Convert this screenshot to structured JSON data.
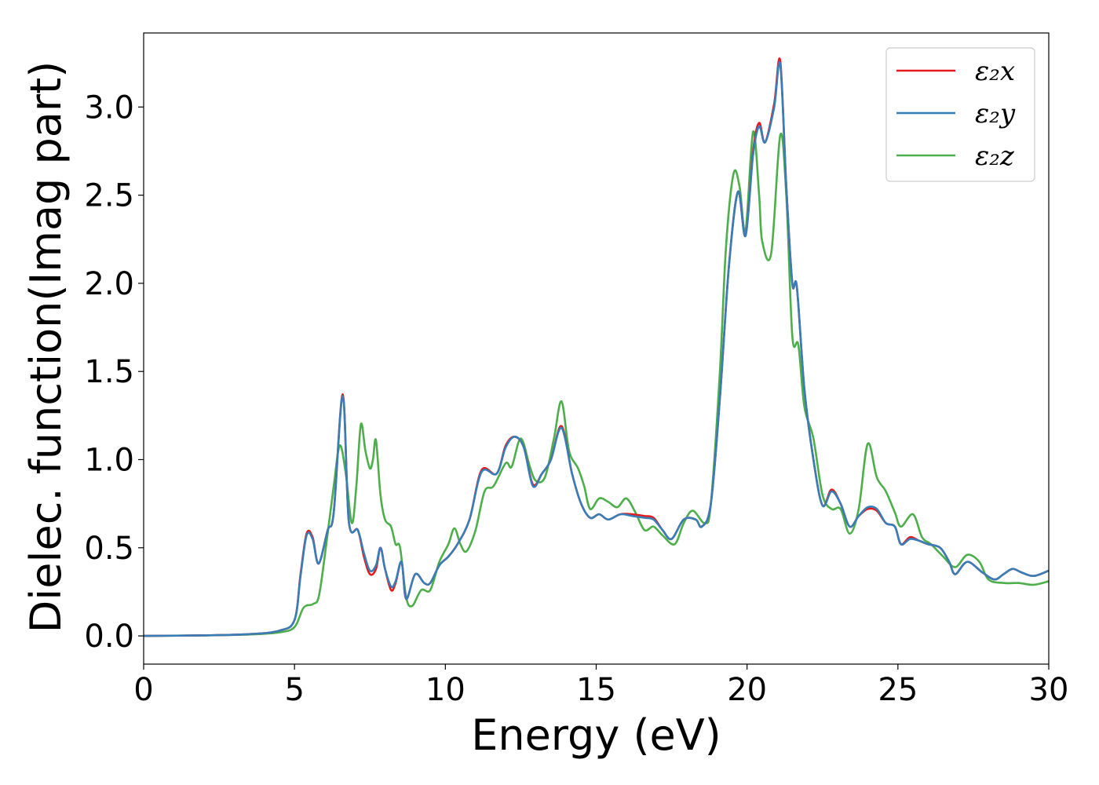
{
  "chart_data": {
    "type": "line",
    "title": "",
    "xlabel": "Energy (eV)",
    "ylabel": "Dielec. function(Imag part)",
    "xlim": [
      0,
      30
    ],
    "ylim": [
      -0.16,
      3.42
    ],
    "xticks": [
      0,
      5,
      10,
      15,
      20,
      25,
      30
    ],
    "yticks": [
      0.0,
      0.5,
      1.0,
      1.5,
      2.0,
      2.5,
      3.0
    ],
    "xtick_labels": [
      "0",
      "5",
      "10",
      "15",
      "20",
      "25",
      "30"
    ],
    "ytick_labels": [
      "0.0",
      "0.5",
      "1.0",
      "1.5",
      "2.0",
      "2.5",
      "3.0"
    ],
    "grid": false,
    "legend": "top-right",
    "series": [
      {
        "name": "ε₂x",
        "color": "#e41a1c",
        "points": [
          [
            0,
            0
          ],
          [
            2,
            0.003
          ],
          [
            3.5,
            0.01
          ],
          [
            4.5,
            0.03
          ],
          [
            5,
            0.09
          ],
          [
            5.2,
            0.35
          ],
          [
            5.4,
            0.58
          ],
          [
            5.6,
            0.56
          ],
          [
            5.8,
            0.41
          ],
          [
            6.1,
            0.6
          ],
          [
            6.3,
            0.7
          ],
          [
            6.6,
            1.37
          ],
          [
            6.8,
            0.65
          ],
          [
            7.1,
            0.6
          ],
          [
            7.3,
            0.45
          ],
          [
            7.5,
            0.35
          ],
          [
            7.7,
            0.38
          ],
          [
            7.85,
            0.5
          ],
          [
            8.0,
            0.38
          ],
          [
            8.2,
            0.26
          ],
          [
            8.35,
            0.3
          ],
          [
            8.55,
            0.42
          ],
          [
            8.7,
            0.21
          ],
          [
            9.0,
            0.35
          ],
          [
            9.3,
            0.3
          ],
          [
            9.5,
            0.3
          ],
          [
            9.8,
            0.4
          ],
          [
            10.1,
            0.45
          ],
          [
            10.4,
            0.52
          ],
          [
            10.8,
            0.66
          ],
          [
            11.2,
            0.94
          ],
          [
            11.7,
            0.92
          ],
          [
            12.0,
            1.08
          ],
          [
            12.3,
            1.13
          ],
          [
            12.6,
            1.07
          ],
          [
            12.9,
            0.86
          ],
          [
            13.2,
            0.92
          ],
          [
            13.5,
            1.0
          ],
          [
            13.85,
            1.19
          ],
          [
            14.2,
            0.92
          ],
          [
            14.5,
            0.75
          ],
          [
            14.8,
            0.67
          ],
          [
            15.1,
            0.69
          ],
          [
            15.4,
            0.66
          ],
          [
            15.8,
            0.69
          ],
          [
            16.2,
            0.69
          ],
          [
            16.6,
            0.68
          ],
          [
            16.9,
            0.67
          ],
          [
            17.2,
            0.6
          ],
          [
            17.5,
            0.55
          ],
          [
            17.9,
            0.66
          ],
          [
            18.3,
            0.66
          ],
          [
            18.5,
            0.62
          ],
          [
            18.8,
            0.75
          ],
          [
            19.1,
            1.35
          ],
          [
            19.4,
            2.1
          ],
          [
            19.7,
            2.52
          ],
          [
            19.95,
            2.27
          ],
          [
            20.2,
            2.75
          ],
          [
            20.4,
            2.91
          ],
          [
            20.6,
            2.8
          ],
          [
            20.9,
            3.02
          ],
          [
            21.1,
            3.26
          ],
          [
            21.3,
            2.55
          ],
          [
            21.5,
            2.0
          ],
          [
            21.65,
            1.98
          ],
          [
            21.9,
            1.4
          ],
          [
            22.2,
            1.0
          ],
          [
            22.5,
            0.74
          ],
          [
            22.8,
            0.83
          ],
          [
            23.1,
            0.75
          ],
          [
            23.4,
            0.62
          ],
          [
            23.7,
            0.68
          ],
          [
            24.0,
            0.72
          ],
          [
            24.3,
            0.71
          ],
          [
            24.6,
            0.64
          ],
          [
            24.9,
            0.62
          ],
          [
            25.1,
            0.52
          ],
          [
            25.4,
            0.56
          ],
          [
            25.7,
            0.54
          ],
          [
            26.0,
            0.52
          ],
          [
            26.4,
            0.5
          ],
          [
            26.7,
            0.42
          ],
          [
            26.9,
            0.35
          ],
          [
            27.3,
            0.42
          ],
          [
            27.8,
            0.36
          ],
          [
            28.2,
            0.32
          ],
          [
            28.5,
            0.35
          ],
          [
            28.8,
            0.38
          ],
          [
            29.1,
            0.36
          ],
          [
            29.5,
            0.34
          ],
          [
            30,
            0.37
          ]
        ]
      },
      {
        "name": "ε₂y",
        "color": "#377eb8",
        "points": [
          [
            0,
            0
          ],
          [
            2,
            0.003
          ],
          [
            3.5,
            0.01
          ],
          [
            4.5,
            0.03
          ],
          [
            5,
            0.09
          ],
          [
            5.2,
            0.34
          ],
          [
            5.4,
            0.57
          ],
          [
            5.6,
            0.55
          ],
          [
            5.8,
            0.41
          ],
          [
            6.1,
            0.6
          ],
          [
            6.3,
            0.7
          ],
          [
            6.6,
            1.36
          ],
          [
            6.8,
            0.65
          ],
          [
            7.1,
            0.6
          ],
          [
            7.3,
            0.47
          ],
          [
            7.5,
            0.37
          ],
          [
            7.7,
            0.4
          ],
          [
            7.85,
            0.5
          ],
          [
            8.0,
            0.38
          ],
          [
            8.2,
            0.28
          ],
          [
            8.35,
            0.31
          ],
          [
            8.55,
            0.42
          ],
          [
            8.7,
            0.21
          ],
          [
            9.0,
            0.35
          ],
          [
            9.3,
            0.3
          ],
          [
            9.5,
            0.3
          ],
          [
            9.8,
            0.4
          ],
          [
            10.1,
            0.45
          ],
          [
            10.4,
            0.52
          ],
          [
            10.8,
            0.66
          ],
          [
            11.2,
            0.93
          ],
          [
            11.7,
            0.92
          ],
          [
            12.0,
            1.07
          ],
          [
            12.3,
            1.13
          ],
          [
            12.6,
            1.07
          ],
          [
            12.9,
            0.85
          ],
          [
            13.2,
            0.92
          ],
          [
            13.5,
            1.0
          ],
          [
            13.85,
            1.18
          ],
          [
            14.2,
            0.92
          ],
          [
            14.5,
            0.75
          ],
          [
            14.8,
            0.67
          ],
          [
            15.1,
            0.69
          ],
          [
            15.4,
            0.66
          ],
          [
            15.8,
            0.69
          ],
          [
            16.2,
            0.68
          ],
          [
            16.6,
            0.67
          ],
          [
            16.9,
            0.66
          ],
          [
            17.2,
            0.6
          ],
          [
            17.5,
            0.55
          ],
          [
            17.9,
            0.66
          ],
          [
            18.3,
            0.66
          ],
          [
            18.5,
            0.62
          ],
          [
            18.8,
            0.75
          ],
          [
            19.1,
            1.35
          ],
          [
            19.4,
            2.1
          ],
          [
            19.7,
            2.52
          ],
          [
            19.95,
            2.27
          ],
          [
            20.2,
            2.73
          ],
          [
            20.4,
            2.89
          ],
          [
            20.6,
            2.8
          ],
          [
            20.9,
            3.0
          ],
          [
            21.1,
            3.24
          ],
          [
            21.3,
            2.55
          ],
          [
            21.5,
            2.0
          ],
          [
            21.65,
            1.98
          ],
          [
            21.9,
            1.4
          ],
          [
            22.2,
            1.0
          ],
          [
            22.5,
            0.74
          ],
          [
            22.8,
            0.82
          ],
          [
            23.1,
            0.75
          ],
          [
            23.4,
            0.62
          ],
          [
            23.7,
            0.68
          ],
          [
            24.0,
            0.73
          ],
          [
            24.3,
            0.72
          ],
          [
            24.6,
            0.64
          ],
          [
            24.9,
            0.62
          ],
          [
            25.1,
            0.52
          ],
          [
            25.4,
            0.55
          ],
          [
            25.7,
            0.54
          ],
          [
            26.0,
            0.52
          ],
          [
            26.4,
            0.5
          ],
          [
            26.7,
            0.42
          ],
          [
            26.9,
            0.35
          ],
          [
            27.3,
            0.42
          ],
          [
            27.8,
            0.36
          ],
          [
            28.2,
            0.32
          ],
          [
            28.5,
            0.35
          ],
          [
            28.8,
            0.38
          ],
          [
            29.1,
            0.36
          ],
          [
            29.5,
            0.34
          ],
          [
            30,
            0.37
          ]
        ]
      },
      {
        "name": "ε₂z",
        "color": "#4daf4a",
        "points": [
          [
            0,
            0
          ],
          [
            2,
            0.003
          ],
          [
            3.5,
            0.008
          ],
          [
            4.5,
            0.02
          ],
          [
            5,
            0.05
          ],
          [
            5.3,
            0.16
          ],
          [
            5.6,
            0.18
          ],
          [
            5.8,
            0.22
          ],
          [
            6.0,
            0.45
          ],
          [
            6.3,
            0.85
          ],
          [
            6.5,
            1.08
          ],
          [
            6.7,
            0.92
          ],
          [
            6.9,
            0.64
          ],
          [
            7.05,
            0.85
          ],
          [
            7.2,
            1.2
          ],
          [
            7.35,
            1.05
          ],
          [
            7.5,
            0.95
          ],
          [
            7.6,
            1.0
          ],
          [
            7.7,
            1.11
          ],
          [
            7.85,
            0.8
          ],
          [
            8.0,
            0.66
          ],
          [
            8.2,
            0.62
          ],
          [
            8.35,
            0.52
          ],
          [
            8.5,
            0.5
          ],
          [
            8.7,
            0.22
          ],
          [
            8.9,
            0.17
          ],
          [
            9.2,
            0.26
          ],
          [
            9.5,
            0.26
          ],
          [
            9.8,
            0.42
          ],
          [
            10.1,
            0.52
          ],
          [
            10.3,
            0.61
          ],
          [
            10.5,
            0.52
          ],
          [
            10.7,
            0.48
          ],
          [
            11.0,
            0.6
          ],
          [
            11.3,
            0.82
          ],
          [
            11.6,
            0.85
          ],
          [
            12.0,
            0.98
          ],
          [
            12.2,
            0.96
          ],
          [
            12.5,
            1.12
          ],
          [
            12.8,
            0.96
          ],
          [
            13.0,
            0.88
          ],
          [
            13.3,
            0.9
          ],
          [
            13.6,
            1.12
          ],
          [
            13.85,
            1.33
          ],
          [
            14.1,
            1.05
          ],
          [
            14.4,
            0.95
          ],
          [
            14.6,
            0.85
          ],
          [
            14.8,
            0.72
          ],
          [
            15.1,
            0.78
          ],
          [
            15.4,
            0.76
          ],
          [
            15.7,
            0.73
          ],
          [
            16.0,
            0.78
          ],
          [
            16.3,
            0.7
          ],
          [
            16.6,
            0.6
          ],
          [
            16.9,
            0.62
          ],
          [
            17.2,
            0.57
          ],
          [
            17.6,
            0.52
          ],
          [
            17.9,
            0.64
          ],
          [
            18.2,
            0.71
          ],
          [
            18.6,
            0.64
          ],
          [
            18.8,
            0.75
          ],
          [
            19.1,
            1.5
          ],
          [
            19.3,
            2.2
          ],
          [
            19.55,
            2.62
          ],
          [
            19.75,
            2.55
          ],
          [
            19.95,
            2.3
          ],
          [
            20.2,
            2.86
          ],
          [
            20.4,
            2.5
          ],
          [
            20.5,
            2.24
          ],
          [
            20.8,
            2.17
          ],
          [
            21.1,
            2.84
          ],
          [
            21.3,
            2.5
          ],
          [
            21.5,
            1.7
          ],
          [
            21.7,
            1.65
          ],
          [
            21.9,
            1.3
          ],
          [
            22.2,
            1.12
          ],
          [
            22.5,
            0.8
          ],
          [
            22.8,
            0.72
          ],
          [
            23.1,
            0.72
          ],
          [
            23.4,
            0.58
          ],
          [
            23.7,
            0.72
          ],
          [
            24.0,
            1.09
          ],
          [
            24.3,
            0.9
          ],
          [
            24.6,
            0.82
          ],
          [
            24.9,
            0.7
          ],
          [
            25.1,
            0.62
          ],
          [
            25.5,
            0.69
          ],
          [
            25.8,
            0.56
          ],
          [
            26.1,
            0.52
          ],
          [
            26.5,
            0.45
          ],
          [
            26.9,
            0.39
          ],
          [
            27.3,
            0.46
          ],
          [
            27.7,
            0.42
          ],
          [
            28.0,
            0.32
          ],
          [
            28.5,
            0.3
          ],
          [
            29.0,
            0.3
          ],
          [
            29.5,
            0.29
          ],
          [
            30,
            0.31
          ]
        ]
      }
    ]
  }
}
